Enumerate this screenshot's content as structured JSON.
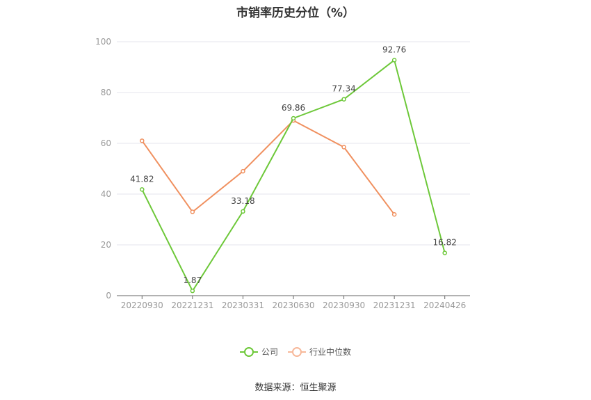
{
  "title": "市销率历史分位（%）",
  "source": "数据来源：恒生聚源",
  "chart_data": {
    "type": "line",
    "title": "市销率历史分位（%）",
    "categories": [
      "20220930",
      "20221231",
      "20230331",
      "20230630",
      "20230930",
      "20231231",
      "20240426"
    ],
    "ylim": [
      0,
      100
    ],
    "yticks": [
      0,
      20,
      40,
      60,
      80,
      100
    ],
    "grid": true,
    "legend_position": "bottom",
    "series": [
      {
        "name": "公司",
        "color": "#6dc839",
        "values": [
          41.82,
          1.87,
          33.18,
          69.86,
          77.34,
          92.76,
          16.82
        ],
        "labels": [
          "41.82",
          "1.87",
          "33.18",
          "69.86",
          "77.34",
          "92.76",
          "16.82"
        ]
      },
      {
        "name": "行业中位数",
        "color": "#f0905f",
        "values": [
          61,
          33,
          49,
          69,
          58.5,
          32,
          null
        ],
        "labels": []
      }
    ]
  }
}
